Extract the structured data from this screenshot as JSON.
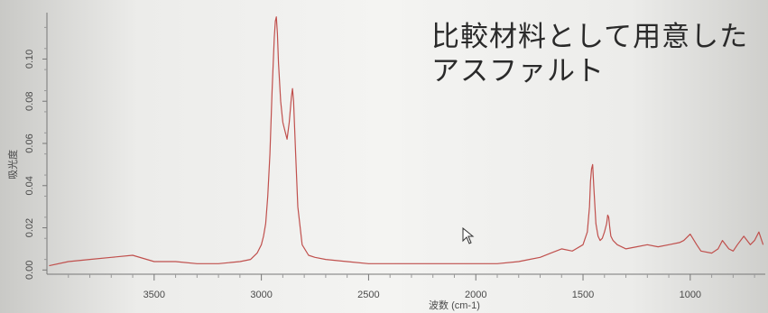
{
  "chart_data": {
    "type": "line",
    "xlabel": "波数 (cm-1)",
    "ylabel": "吸光度",
    "xlim": [
      4000,
      650
    ],
    "ylim": [
      -0.002,
      0.122
    ],
    "x_reversed": true,
    "x_ticks": [
      3500,
      3000,
      2500,
      2000,
      1500,
      1000
    ],
    "y_ticks": [
      0.0,
      0.02,
      0.04,
      0.06,
      0.08,
      0.1
    ],
    "y_tick_labels": [
      "0.00",
      "0.02",
      "0.04",
      "0.06",
      "0.08",
      "0.10"
    ],
    "grid": false,
    "line_color": "#c0504d",
    "series": [
      {
        "name": "",
        "x": [
          3990,
          3900,
          3800,
          3700,
          3600,
          3500,
          3400,
          3300,
          3200,
          3100,
          3050,
          3020,
          3000,
          2990,
          2980,
          2970,
          2960,
          2950,
          2940,
          2935,
          2930,
          2925,
          2920,
          2910,
          2900,
          2890,
          2880,
          2870,
          2860,
          2855,
          2850,
          2840,
          2830,
          2810,
          2780,
          2750,
          2700,
          2600,
          2500,
          2400,
          2300,
          2200,
          2100,
          2000,
          1900,
          1800,
          1750,
          1700,
          1650,
          1600,
          1550,
          1500,
          1480,
          1470,
          1465,
          1460,
          1455,
          1450,
          1440,
          1430,
          1420,
          1410,
          1400,
          1390,
          1385,
          1380,
          1375,
          1370,
          1360,
          1340,
          1300,
          1250,
          1200,
          1150,
          1100,
          1050,
          1030,
          1000,
          970,
          950,
          900,
          870,
          850,
          820,
          800,
          780,
          750,
          720,
          700,
          680,
          660
        ],
        "y": [
          0.002,
          0.004,
          0.005,
          0.006,
          0.007,
          0.004,
          0.004,
          0.003,
          0.003,
          0.004,
          0.005,
          0.008,
          0.012,
          0.016,
          0.022,
          0.035,
          0.055,
          0.085,
          0.11,
          0.118,
          0.12,
          0.112,
          0.098,
          0.08,
          0.07,
          0.066,
          0.062,
          0.07,
          0.082,
          0.086,
          0.08,
          0.055,
          0.03,
          0.012,
          0.007,
          0.006,
          0.005,
          0.004,
          0.003,
          0.003,
          0.003,
          0.003,
          0.003,
          0.003,
          0.003,
          0.004,
          0.005,
          0.006,
          0.008,
          0.01,
          0.009,
          0.012,
          0.018,
          0.03,
          0.042,
          0.048,
          0.05,
          0.04,
          0.022,
          0.016,
          0.014,
          0.015,
          0.018,
          0.022,
          0.026,
          0.025,
          0.02,
          0.016,
          0.014,
          0.012,
          0.01,
          0.011,
          0.012,
          0.011,
          0.012,
          0.013,
          0.014,
          0.017,
          0.012,
          0.009,
          0.008,
          0.01,
          0.014,
          0.01,
          0.009,
          0.012,
          0.016,
          0.012,
          0.014,
          0.018,
          0.012
        ]
      }
    ]
  },
  "annotation": {
    "line1": "比較材料として用意した",
    "line2": "アスファルト"
  }
}
